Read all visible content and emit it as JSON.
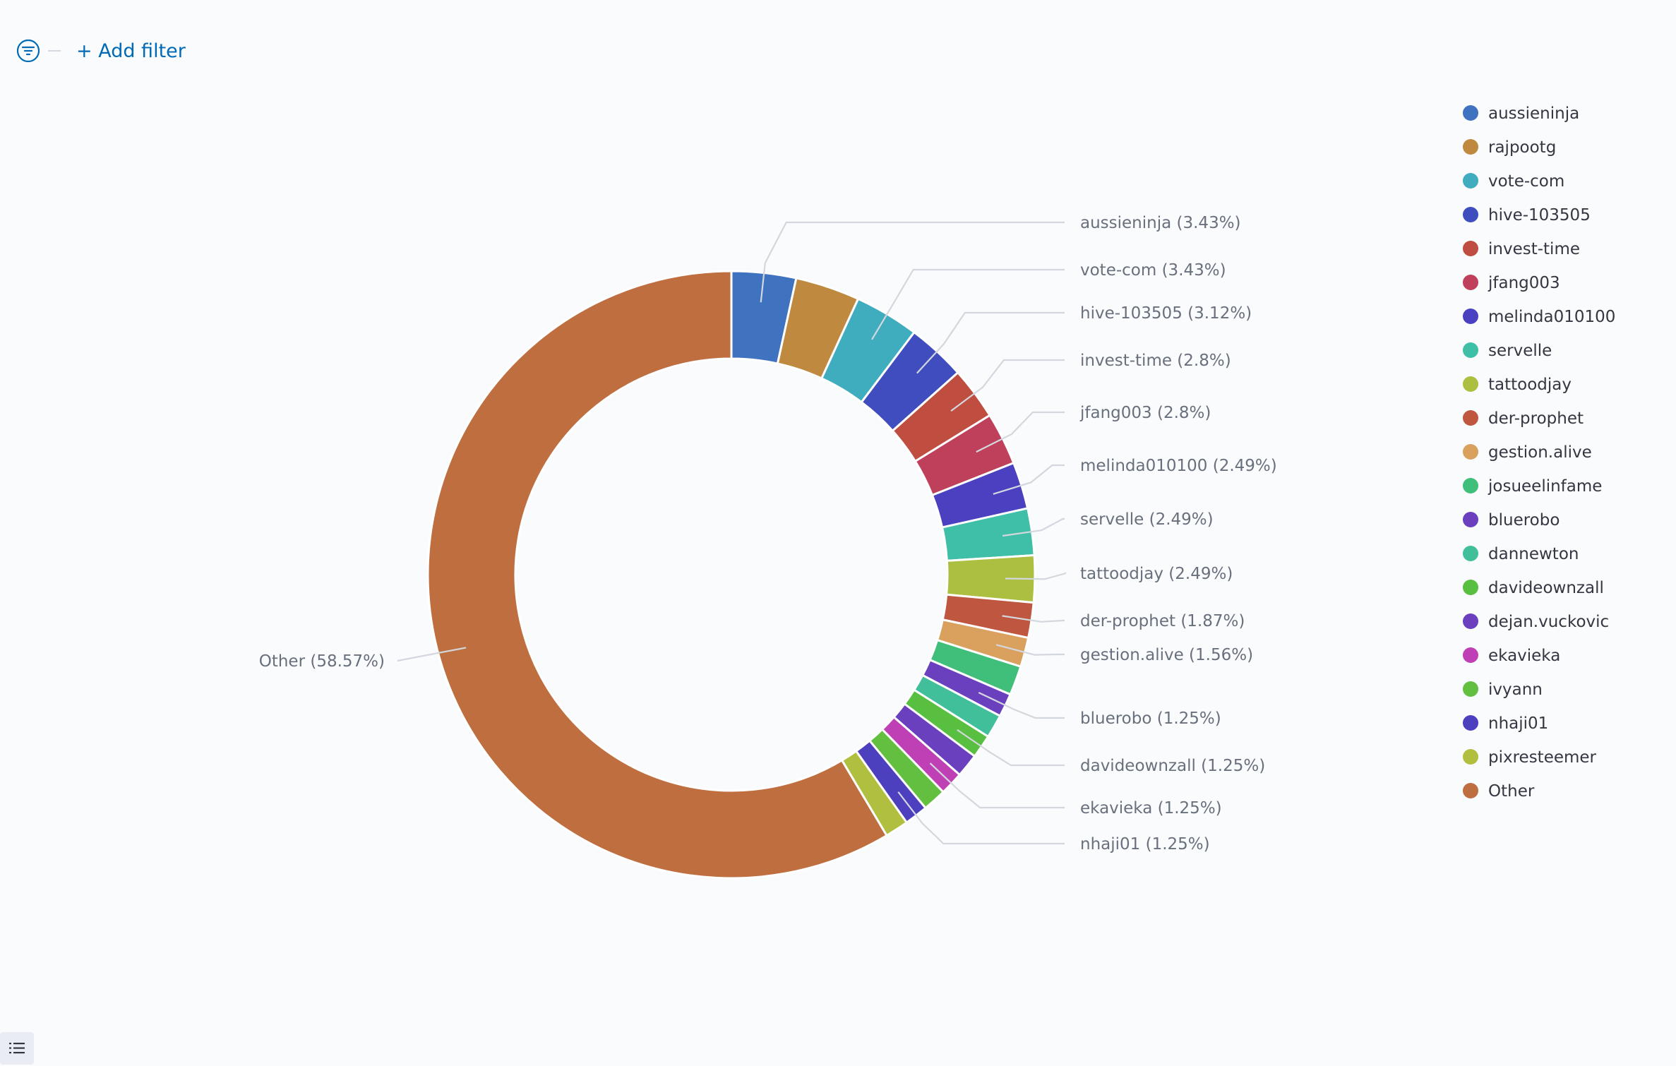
{
  "filter_bar": {
    "filter_icon": "filter-icon",
    "add_filter_label": "+ Add filter"
  },
  "legend_toggle_icon": "list-icon",
  "chart_data": {
    "type": "pie",
    "donut": true,
    "legend_position": "right",
    "slices": [
      {
        "label": "aussieninja",
        "value": 3.43,
        "color": "#4073bf",
        "outer_label": "aussieninja (3.43%)"
      },
      {
        "label": "rajpootg",
        "value": 3.43,
        "color": "#bf8a40",
        "outer_label": ""
      },
      {
        "label": "vote-com",
        "value": 3.43,
        "color": "#40adbf",
        "outer_label": "vote-com (3.43%)"
      },
      {
        "label": "hive-103505",
        "value": 3.12,
        "color": "#404dbf",
        "outer_label": "hive-103505 (3.12%)"
      },
      {
        "label": "invest-time",
        "value": 2.8,
        "color": "#bf4d40",
        "outer_label": "invest-time (2.8%)"
      },
      {
        "label": "jfang003",
        "value": 2.8,
        "color": "#bf405a",
        "outer_label": "jfang003 (2.8%)"
      },
      {
        "label": "melinda010100",
        "value": 2.49,
        "color": "#4b40bf",
        "outer_label": "melinda010100 (2.49%)"
      },
      {
        "label": "servelle",
        "value": 2.49,
        "color": "#40bfa8",
        "outer_label": "servelle (2.49%)"
      },
      {
        "label": "tattoodjay",
        "value": 2.49,
        "color": "#adbf40",
        "outer_label": "tattoodjay (2.49%)"
      },
      {
        "label": "der-prophet",
        "value": 1.87,
        "color": "#bf5640",
        "outer_label": "der-prophet (1.87%)"
      },
      {
        "label": "gestion.alive",
        "value": 1.56,
        "color": "#d9a05e",
        "outer_label": "gestion.alive (1.56%)"
      },
      {
        "label": "josueelinfame",
        "value": 1.56,
        "color": "#40bf7a",
        "outer_label": ""
      },
      {
        "label": "bluerobo",
        "value": 1.25,
        "color": "#6a40bf",
        "outer_label": "bluerobo (1.25%)"
      },
      {
        "label": "dannewton",
        "value": 1.25,
        "color": "#40bf9a",
        "outer_label": ""
      },
      {
        "label": "davideownzall",
        "value": 1.25,
        "color": "#58bf40",
        "outer_label": "davideownzall (1.25%)"
      },
      {
        "label": "dejan.vuckovic",
        "value": 1.25,
        "color": "#6a40bf",
        "outer_label": ""
      },
      {
        "label": "ekavieka",
        "value": 1.25,
        "color": "#bf40b5",
        "outer_label": "ekavieka (1.25%)"
      },
      {
        "label": "ivyann",
        "value": 1.25,
        "color": "#62bf40",
        "outer_label": ""
      },
      {
        "label": "nhaji01",
        "value": 1.25,
        "color": "#4d40bf",
        "outer_label": "nhaji01 (1.25%)"
      },
      {
        "label": "pixresteemer",
        "value": 1.25,
        "color": "#b0bf40",
        "outer_label": ""
      },
      {
        "label": "Other",
        "value": 58.57,
        "color": "#bf6e40",
        "outer_label": "Other (58.57%)"
      }
    ]
  }
}
